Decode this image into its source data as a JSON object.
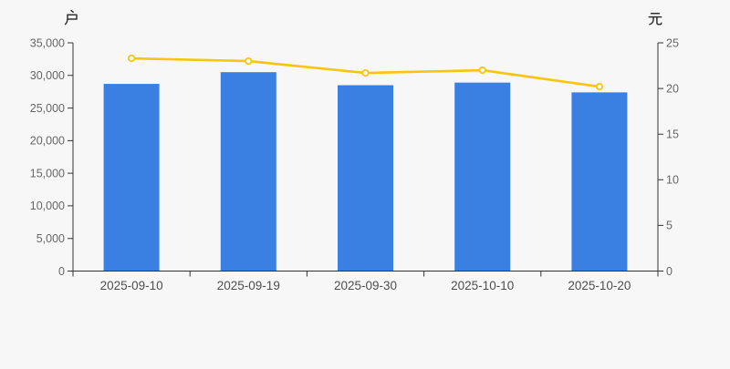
{
  "style": {
    "background": "#f7f7f7",
    "axis_color": "#333333",
    "tick_label_color": "#666666",
    "category_label_color": "#4d4d4d",
    "marker_fill": "#ffffff"
  },
  "chart_data": {
    "type": "combo-bar-line",
    "categories": [
      "2025-09-10",
      "2025-09-19",
      "2025-09-30",
      "2025-10-10",
      "2025-10-20"
    ],
    "series": [
      {
        "name": "bars",
        "type": "bar",
        "axis": "left",
        "unit": "户",
        "color": "#3A80E2",
        "values": [
          28700,
          30500,
          28500,
          28900,
          27400
        ]
      },
      {
        "name": "line",
        "type": "line",
        "axis": "right",
        "unit": "元",
        "color": "#FBC40D",
        "values": [
          23.3,
          23.0,
          21.7,
          22.0,
          20.2
        ]
      }
    ],
    "left_axis": {
      "unit_label": "户",
      "min": 0,
      "max": 35000,
      "tick_step": 5000,
      "tick_labels": [
        "0",
        "5,000",
        "10,000",
        "15,000",
        "20,000",
        "25,000",
        "30,000",
        "35,000"
      ]
    },
    "right_axis": {
      "unit_label": "元",
      "min": 0,
      "max": 25,
      "tick_step": 5,
      "tick_labels": [
        "0",
        "5",
        "10",
        "15",
        "20",
        "25"
      ]
    },
    "grid": false,
    "legend": false
  }
}
